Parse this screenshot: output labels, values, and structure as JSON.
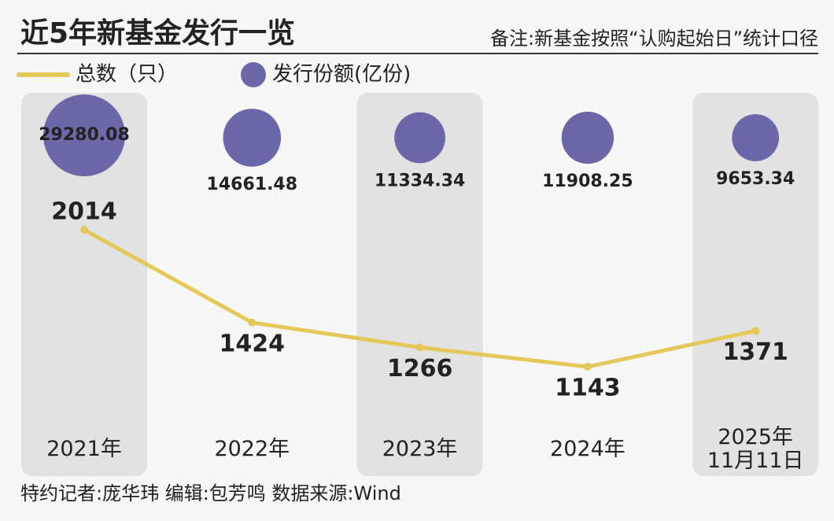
{
  "chart_data": {
    "type": "line-bubble",
    "title": "近5年新基金发行一览",
    "subtitle": "备注:新基金按照“认购起始日”统计口径",
    "footer": "特约记者:庞华玮  编辑:包芳鸣  数据来源:Wind",
    "categories": [
      "2021年",
      "2022年",
      "2023年",
      "2024年",
      "2025年\n11月11日"
    ],
    "series": [
      {
        "name": "总数（只）",
        "color": "#e5c85a",
        "values": [
          2014,
          1424,
          1266,
          1143,
          1371
        ]
      },
      {
        "name": "发行份额(亿份)",
        "color": "#6b67a8",
        "values": [
          29280.08,
          14661.48,
          11334.34,
          11908.25,
          9653.34
        ]
      }
    ]
  }
}
